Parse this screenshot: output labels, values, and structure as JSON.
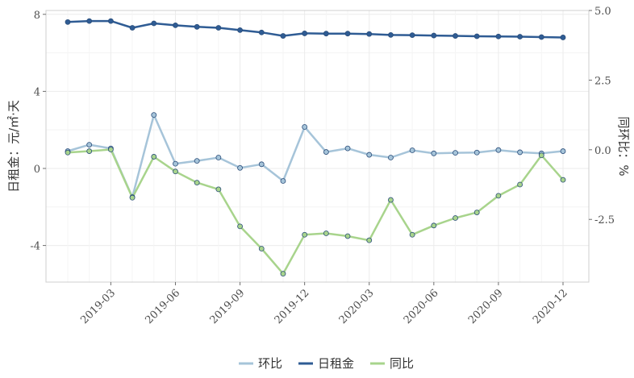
{
  "chart_data": {
    "type": "line",
    "x": [
      "2019-01",
      "2019-02",
      "2019-03",
      "2019-04",
      "2019-05",
      "2019-06",
      "2019-07",
      "2019-08",
      "2019-09",
      "2019-10",
      "2019-11",
      "2019-12",
      "2020-01",
      "2020-02",
      "2020-03",
      "2020-04",
      "2020-05",
      "2020-06",
      "2020-07",
      "2020-08",
      "2020-09",
      "2020-10",
      "2020-11",
      "2020-12"
    ],
    "x_tick_labels": [
      "2019-03",
      "2019-06",
      "2019-09",
      "2019-12",
      "2020-03",
      "2020-06",
      "2020-09",
      "2020-12"
    ],
    "ylabel_left": "日租金：元/㎡·天",
    "ylabel_right": "同环比：%",
    "ylim_left": [
      -5.9,
      8.2
    ],
    "ylim_right": [
      -4.75,
      5.0
    ],
    "yticks_left": [
      "8",
      "4",
      "0",
      "-4"
    ],
    "yticks_right": [
      "5.0",
      "2.5",
      "0.0",
      "-2.5"
    ],
    "grid": true,
    "legend_position": "bottom",
    "series": [
      {
        "name": "环比",
        "axis": "right",
        "color": "#a6c4d9",
        "values": [
          -0.05,
          0.18,
          0.05,
          -1.7,
          1.25,
          -0.5,
          -0.4,
          -0.28,
          -0.65,
          -0.52,
          -1.12,
          0.82,
          -0.08,
          0.05,
          -0.18,
          -0.28,
          -0.02,
          -0.13,
          -0.11,
          -0.1,
          -0.01,
          -0.09,
          -0.13,
          -0.05
        ]
      },
      {
        "name": "日租金",
        "axis": "left",
        "color": "#2f5c94",
        "values": [
          7.6,
          7.65,
          7.65,
          7.3,
          7.53,
          7.43,
          7.35,
          7.3,
          7.18,
          7.06,
          6.88,
          7.01,
          7.0,
          7.0,
          6.98,
          6.93,
          6.92,
          6.9,
          6.88,
          6.86,
          6.85,
          6.84,
          6.82,
          6.8
        ]
      },
      {
        "name": "同比",
        "axis": "right",
        "color": "#a8d48c",
        "values": [
          -0.1,
          -0.05,
          0.01,
          -1.72,
          -0.25,
          -0.78,
          -1.18,
          -1.42,
          -2.75,
          -3.55,
          -4.45,
          -3.05,
          -3.0,
          -3.1,
          -3.25,
          -1.8,
          -3.05,
          -2.72,
          -2.45,
          -2.25,
          -1.65,
          -1.25,
          -0.2,
          -1.08
        ]
      }
    ]
  }
}
